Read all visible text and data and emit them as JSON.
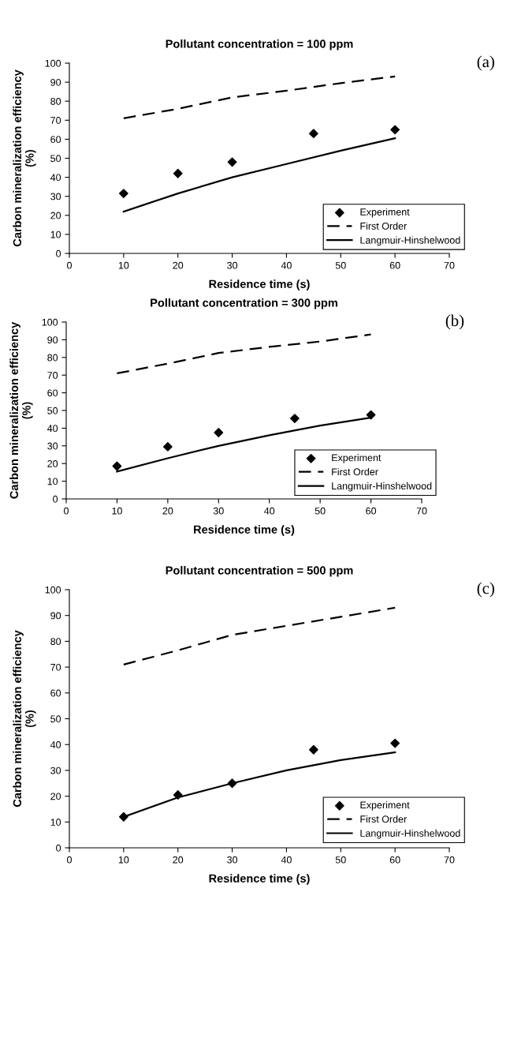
{
  "chart_data": [
    {
      "type": "line",
      "title": "Pollutant concentration = 100 ppm",
      "xlabel": "Residence time (s)",
      "ylabel": "Carbon mineralization efficiency\n(%)",
      "annotations": [
        "(a)"
      ],
      "xlim": [
        0,
        70
      ],
      "xticks": [
        0,
        10,
        20,
        30,
        40,
        50,
        60,
        70
      ],
      "ylim": [
        0,
        100
      ],
      "yticks": [
        0,
        10,
        20,
        30,
        40,
        50,
        60,
        70,
        80,
        90,
        100
      ],
      "grid": false,
      "legend": "bottom right",
      "series": [
        {
          "name": "Experiment",
          "type": "scatter",
          "marker": "diamond",
          "color": "#000000",
          "x": [
            10,
            20,
            30,
            45,
            60
          ],
          "values": [
            31.5,
            42,
            48,
            63,
            65
          ]
        },
        {
          "name": "First Order",
          "type": "line",
          "line_style": "dashed",
          "marker": "none",
          "color": "#000000",
          "x": [
            10,
            20,
            30,
            40,
            50,
            60
          ],
          "values": [
            71,
            76,
            82,
            85.5,
            89.5,
            93
          ]
        },
        {
          "name": "Langmuir-Hinshelwood",
          "type": "line",
          "line_style": "solid",
          "marker": "none",
          "color": "#000000",
          "x": [
            10,
            20,
            30,
            40,
            50,
            60
          ],
          "values": [
            22,
            31.5,
            40,
            47,
            54,
            60.5
          ]
        }
      ]
    },
    {
      "type": "line",
      "title": "Pollutant concentration = 300 ppm",
      "xlabel": "Residence time (s)",
      "ylabel": "Carbon mineralization efficiency\n(%)",
      "annotations": [
        "(b)"
      ],
      "xlim": [
        0,
        70
      ],
      "xticks": [
        0,
        10,
        20,
        30,
        40,
        50,
        60,
        70
      ],
      "ylim": [
        0,
        100
      ],
      "yticks": [
        0,
        10,
        20,
        30,
        40,
        50,
        60,
        70,
        80,
        90,
        100
      ],
      "grid": false,
      "legend": "bottom right",
      "series": [
        {
          "name": "Experiment",
          "type": "scatter",
          "marker": "diamond",
          "color": "#000000",
          "x": [
            10,
            20,
            30,
            45,
            60
          ],
          "values": [
            18.5,
            29.5,
            37.5,
            45.5,
            47.5
          ]
        },
        {
          "name": "First Order",
          "type": "line",
          "line_style": "dashed",
          "marker": "none",
          "color": "#000000",
          "x": [
            10,
            20,
            30,
            40,
            50,
            60
          ],
          "values": [
            71,
            76.5,
            82.5,
            86,
            89,
            93
          ]
        },
        {
          "name": "Langmuir-Hinshelwood",
          "type": "line",
          "line_style": "solid",
          "marker": "none",
          "color": "#000000",
          "x": [
            10,
            20,
            30,
            40,
            50,
            60
          ],
          "values": [
            15.5,
            23,
            30,
            36,
            41.5,
            46
          ]
        }
      ]
    },
    {
      "type": "line",
      "title": "Pollutant concentration = 500 ppm",
      "xlabel": "Residence time (s)",
      "ylabel": "Carbon mineralization efficiency\n(%)",
      "annotations": [
        "(c)"
      ],
      "xlim": [
        0,
        70
      ],
      "xticks": [
        0,
        10,
        20,
        30,
        40,
        50,
        60,
        70
      ],
      "ylim": [
        0,
        100
      ],
      "yticks": [
        0,
        10,
        20,
        30,
        40,
        50,
        60,
        70,
        80,
        90,
        100
      ],
      "grid": false,
      "legend": "bottom right",
      "series": [
        {
          "name": "Experiment",
          "type": "scatter",
          "marker": "diamond",
          "color": "#000000",
          "x": [
            10,
            20,
            30,
            45,
            60
          ],
          "values": [
            12,
            20.5,
            25,
            38,
            40.5
          ]
        },
        {
          "name": "First Order",
          "type": "line",
          "line_style": "dashed",
          "marker": "none",
          "color": "#000000",
          "x": [
            10,
            20,
            30,
            40,
            50,
            60
          ],
          "values": [
            71,
            76.5,
            82.5,
            86,
            89.5,
            93
          ]
        },
        {
          "name": "Langmuir-Hinshelwood",
          "type": "line",
          "line_style": "solid",
          "marker": "none",
          "color": "#000000",
          "x": [
            10,
            20,
            30,
            40,
            50,
            60
          ],
          "values": [
            12,
            19.5,
            25,
            30,
            34,
            37
          ]
        }
      ]
    }
  ]
}
